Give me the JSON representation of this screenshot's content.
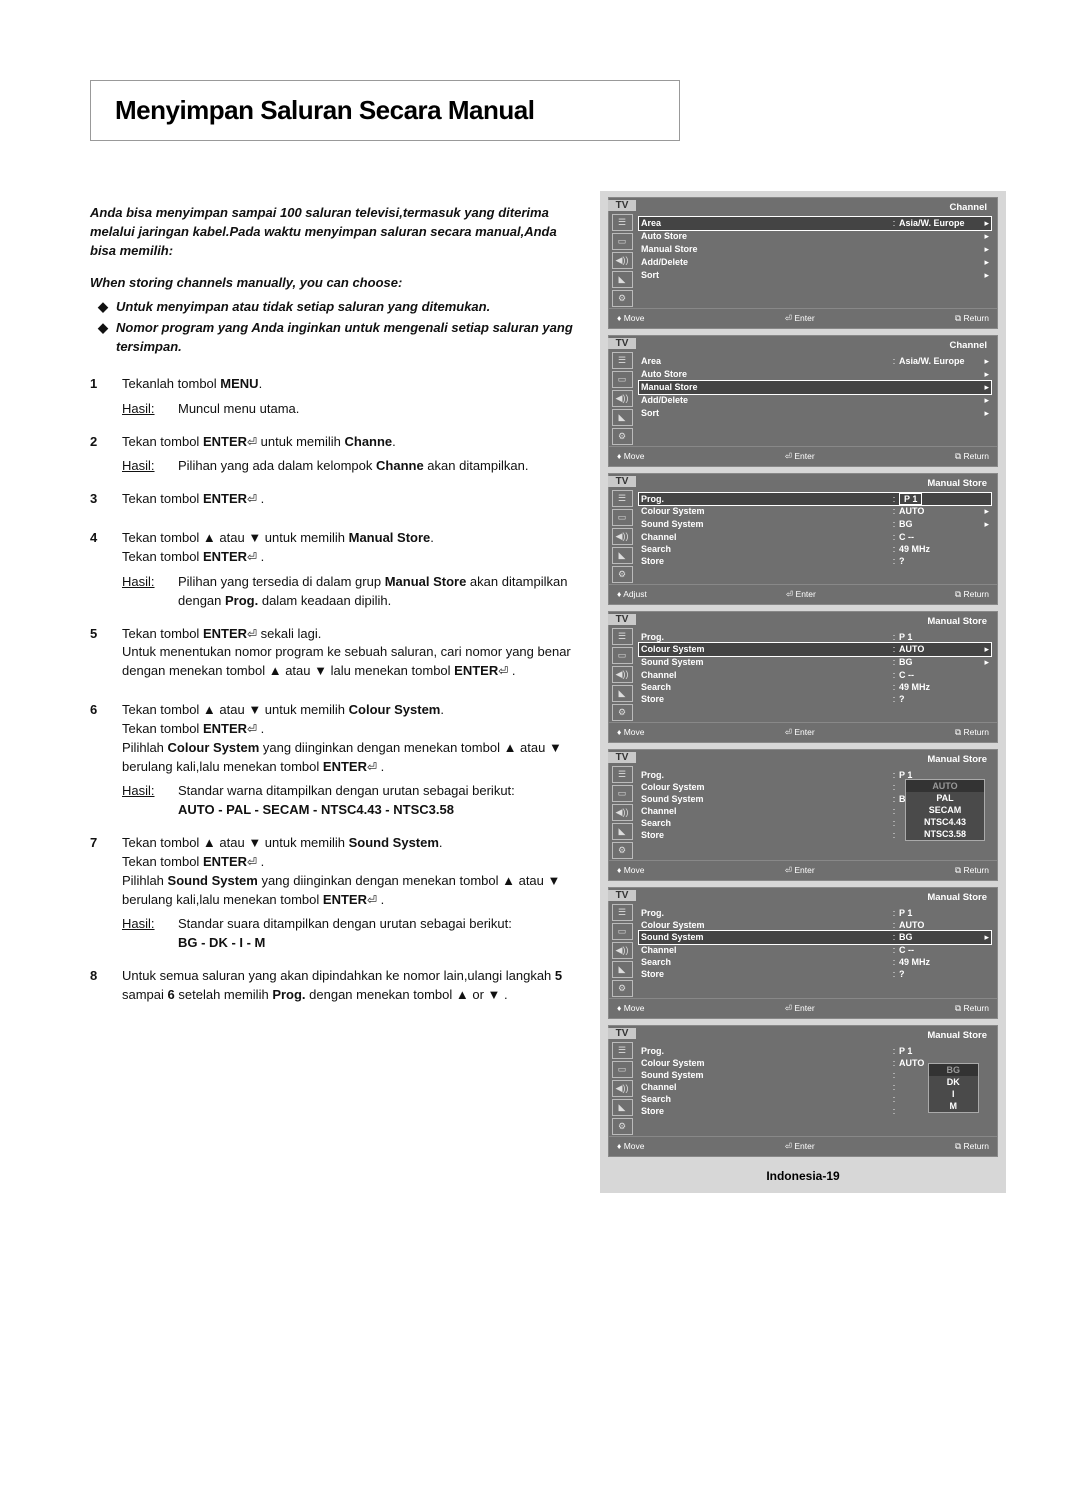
{
  "title": "Menyimpan Saluran Secara Manual",
  "intro_id": "Anda bisa menyimpan sampai 100 saluran televisi,termasuk yang diterima melalui jaringan kabel.Pada waktu menyimpan saluran secara manual,Anda bisa memilih:",
  "intro_en": "When storing channels manually, you can choose:",
  "bullet1": "Untuk menyimpan atau tidak setiap saluran yang ditemukan.",
  "bullet2": "Nomor program yang Anda inginkan untuk mengenali setiap saluran yang tersimpan.",
  "hasil": "Hasil:",
  "s1": {
    "t": "Tekanlah tombol MENU.",
    "h": "Muncul menu utama."
  },
  "s2": {
    "t": "Tekan tombol ENTER ⏎ untuk memilih Channe.",
    "h": "Pilihan yang ada dalam kelompok Channe akan ditampilkan."
  },
  "s3": {
    "t": "Tekan tombol ENTER ⏎ ."
  },
  "s4": {
    "t1": "Tekan tombol ▲ atau ▼ untuk memilih Manual Store.",
    "t2": "Tekan tombol ENTER ⏎ .",
    "h": "Pilihan yang tersedia di dalam grup Manual Store akan ditampilkan dengan Prog. dalam keadaan dipilih."
  },
  "s5": {
    "t1": "Tekan tombol ENTER ⏎ sekali lagi.",
    "t2": "Untuk menentukan nomor program ke sebuah saluran, cari nomor yang benar dengan menekan tombol ▲ atau ▼ lalu menekan tombol ENTER ⏎ ."
  },
  "s6": {
    "t1": "Tekan tombol ▲ atau ▼ untuk memilih Colour System.",
    "t2": "Tekan tombol ENTER ⏎ .",
    "t3": "Pilihlah Colour System yang diinginkan dengan menekan tombol ▲ atau ▼ berulang kali,lalu menekan tombol ENTER ⏎ .",
    "h": "Standar warna ditampilkan dengan urutan sebagai berikut:",
    "seq": "AUTO - PAL - SECAM - NTSC4.43 - NTSC3.58"
  },
  "s7": {
    "t1": "Tekan tombol ▲ atau ▼ untuk memilih Sound System.",
    "t2": "Tekan tombol ENTER ⏎ .",
    "t3": "Pilihlah Sound System yang diinginkan dengan menekan tombol ▲ atau ▼ berulang kali,lalu menekan tombol ENTER ⏎ .",
    "h": "Standar suara ditampilkan dengan urutan sebagai berikut:",
    "seq": "BG - DK - I - M"
  },
  "s8": {
    "t": "Untuk semua saluran yang akan dipindahkan ke nomor lain,ulangi langkah 5 sampai 6 setelah memilih Prog. dengan menekan tombol ▲ or ▼ ."
  },
  "tv": {
    "label": "TV",
    "ch_title": "Channel",
    "ms_title": "Manual Store",
    "area": "Area",
    "area_v": "Asia/W. Europe",
    "autostore": "Auto Store",
    "manualstore": "Manual Store",
    "adddel": "Add/Delete",
    "sort": "Sort",
    "prog": "Prog.",
    "prog_v": "P    1",
    "csys": "Colour System",
    "csys_v": "AUTO",
    "ssys": "Sound System",
    "ssys_v": "BG",
    "chan": "Channel",
    "chan_v": "C    --",
    "search": "Search",
    "search_v": "49    MHz",
    "store": "Store",
    "store_v": "?",
    "opts_c": [
      "AUTO",
      "PAL",
      "SECAM",
      "NTSC4.43",
      "NTSC3.58"
    ],
    "opts_s": [
      "BG",
      "DK",
      "I",
      "M"
    ],
    "move": "Move",
    "adjust": "Adjust",
    "enter": "Enter",
    "return": "Return"
  },
  "page_ref": "Indonesia-19"
}
